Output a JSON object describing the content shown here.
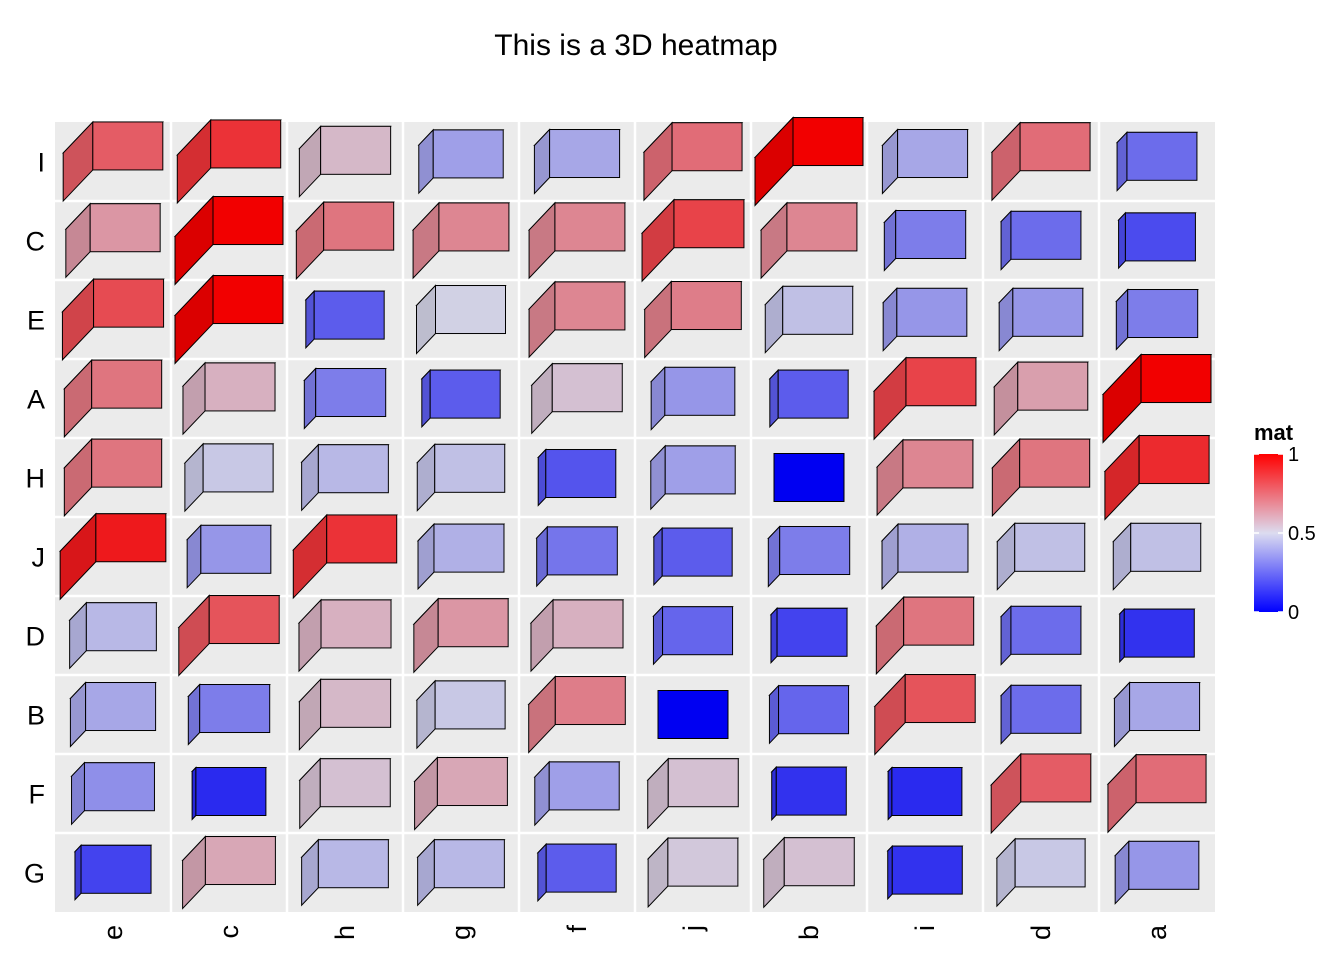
{
  "chart_data": {
    "type": "heatmap",
    "title": "This is a 3D heatmap",
    "columns": [
      "e",
      "c",
      "h",
      "g",
      "f",
      "j",
      "b",
      "i",
      "d",
      "a"
    ],
    "rows": [
      "I",
      "C",
      "E",
      "A",
      "H",
      "J",
      "D",
      "B",
      "F",
      "G"
    ],
    "values": [
      [
        0.78,
        0.88,
        0.56,
        0.38,
        0.4,
        0.74,
        1.0,
        0.4,
        0.74,
        0.26
      ],
      [
        0.64,
        1.0,
        0.72,
        0.68,
        0.68,
        0.84,
        0.68,
        0.3,
        0.26,
        0.18
      ],
      [
        0.82,
        1.0,
        0.22,
        0.5,
        0.68,
        0.7,
        0.46,
        0.36,
        0.36,
        0.3
      ],
      [
        0.72,
        0.58,
        0.3,
        0.22,
        0.54,
        0.36,
        0.22,
        0.84,
        0.62,
        1.0
      ],
      [
        0.72,
        0.48,
        0.44,
        0.46,
        0.2,
        0.38,
        0.0,
        0.68,
        0.72,
        0.9
      ],
      [
        0.94,
        0.36,
        0.88,
        0.42,
        0.28,
        0.22,
        0.3,
        0.42,
        0.46,
        0.46
      ],
      [
        0.44,
        0.8,
        0.58,
        0.64,
        0.58,
        0.24,
        0.16,
        0.72,
        0.26,
        0.12
      ],
      [
        0.4,
        0.3,
        0.56,
        0.48,
        0.7,
        0.0,
        0.24,
        0.8,
        0.26,
        0.4
      ],
      [
        0.34,
        0.1,
        0.54,
        0.6,
        0.38,
        0.54,
        0.12,
        0.1,
        0.78,
        0.74
      ],
      [
        0.16,
        0.6,
        0.44,
        0.44,
        0.22,
        0.52,
        0.54,
        0.12,
        0.48,
        0.36
      ]
    ],
    "legend": {
      "title": "mat",
      "position": "right",
      "ticks": [
        {
          "value": 1,
          "label": "1"
        },
        {
          "value": 0.5,
          "label": "0.5"
        },
        {
          "value": 0,
          "label": "0"
        }
      ],
      "colors": {
        "low": "#0000ff",
        "mid": "#dcdcf0",
        "high": "#ff0000"
      }
    },
    "panel_background": "#ebebeb",
    "grid": true
  }
}
